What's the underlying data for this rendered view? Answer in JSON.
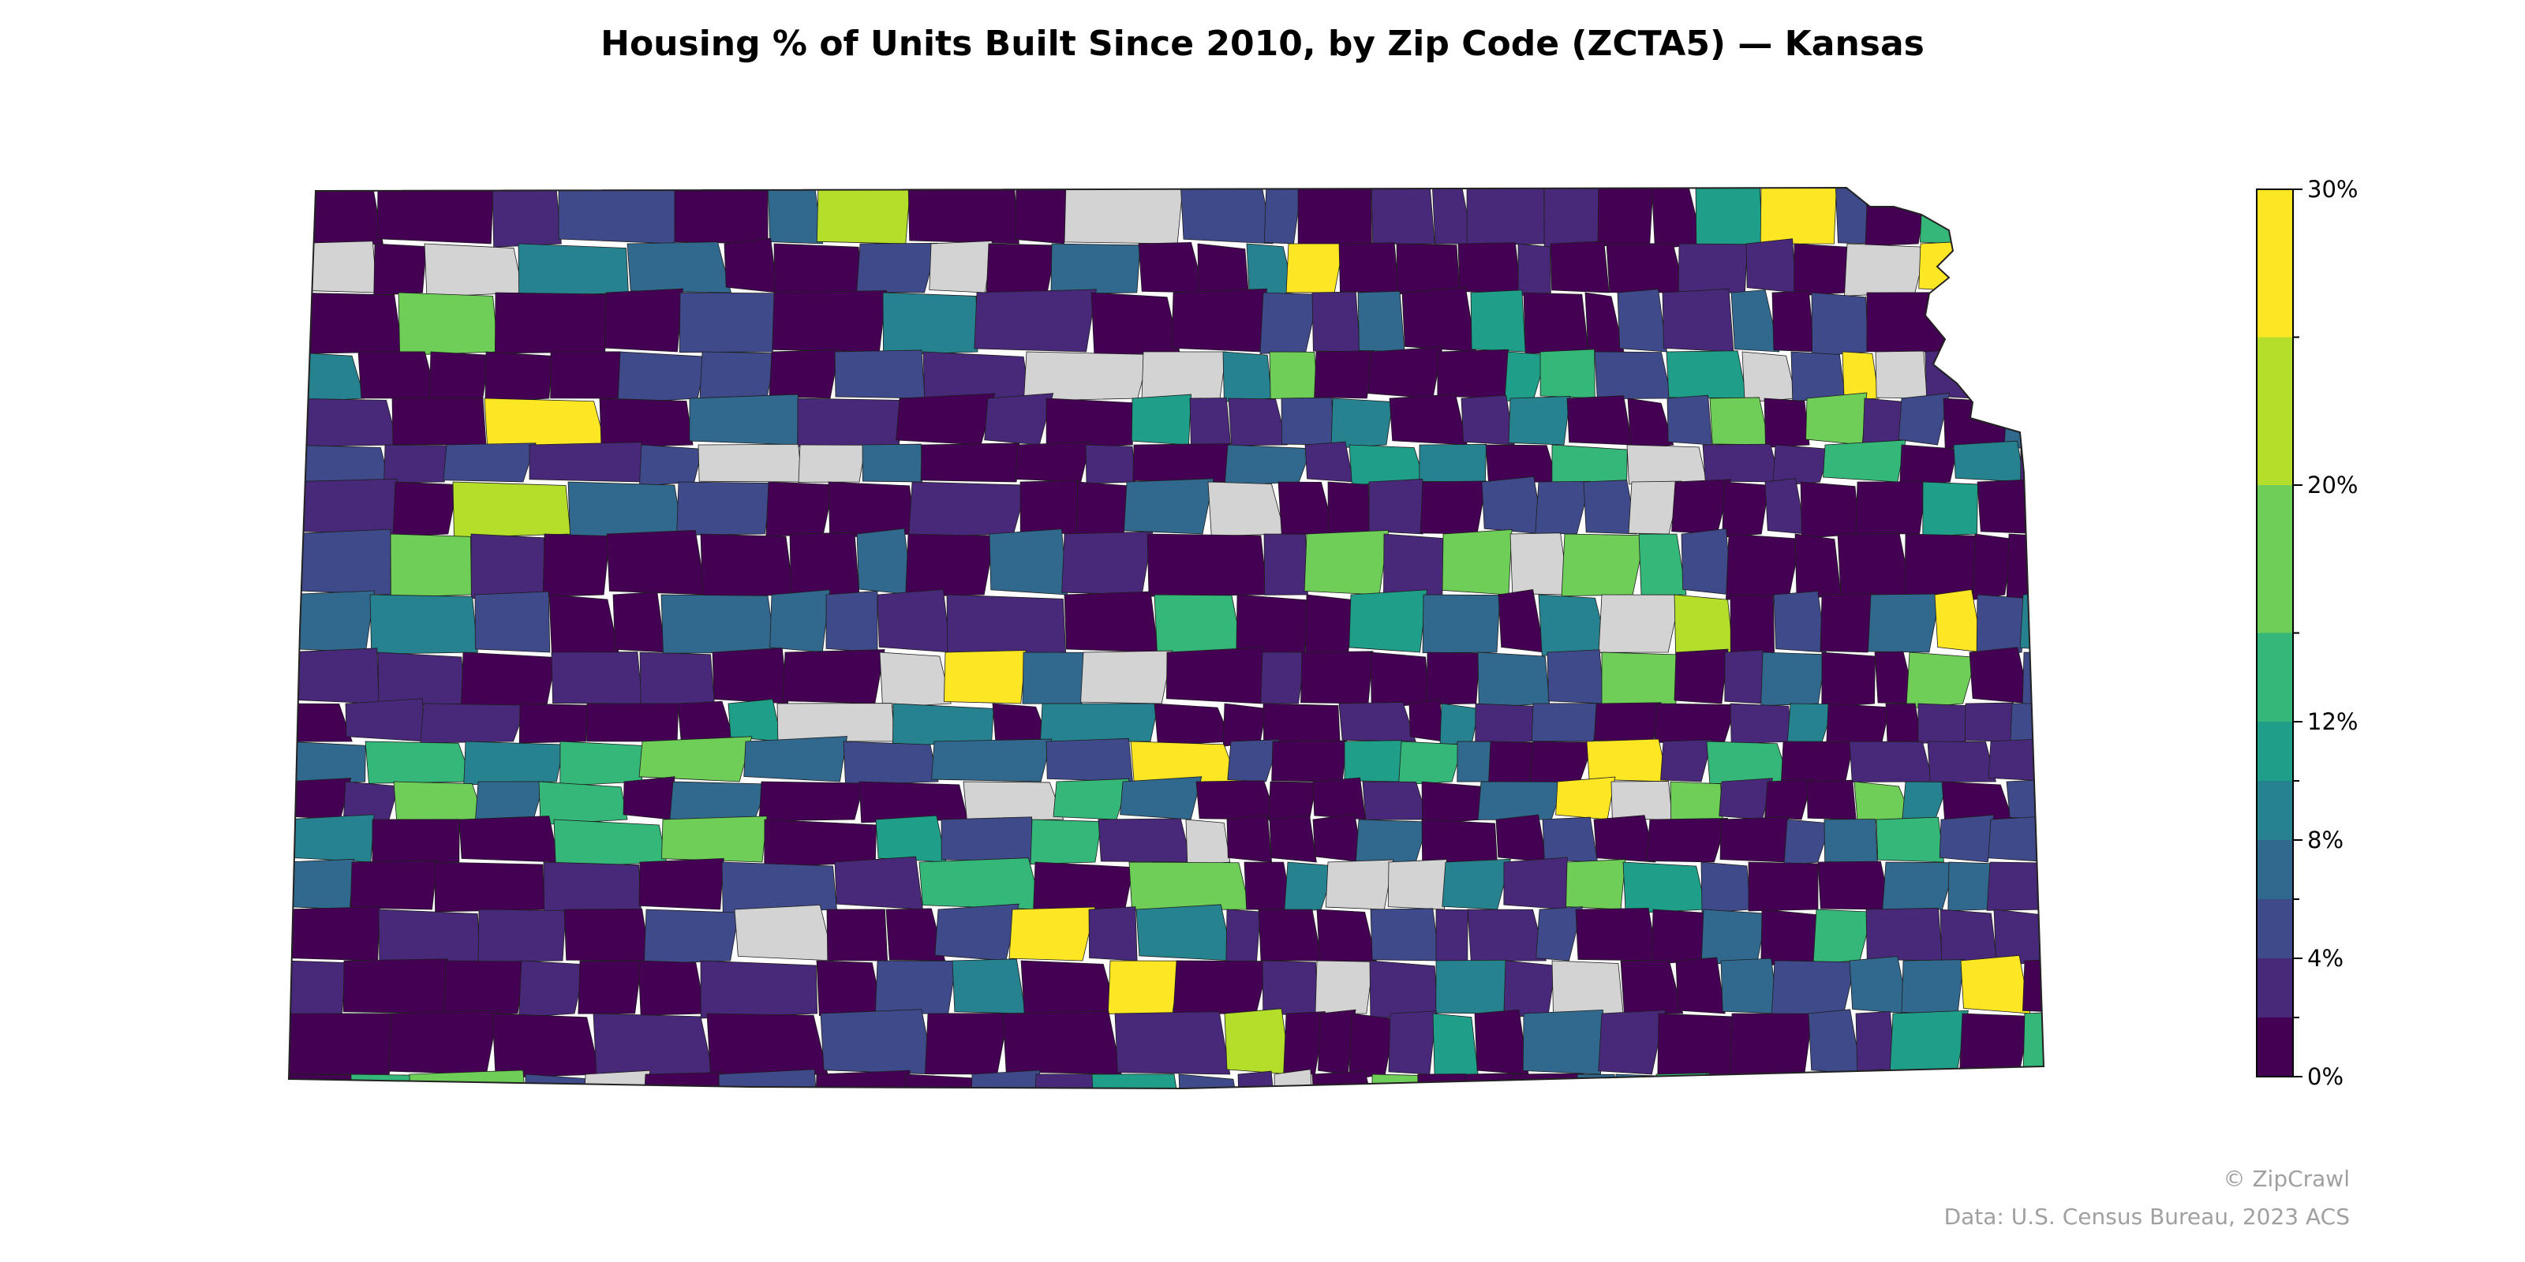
{
  "title": "Housing % of Units Built Since 2010, by Zip Code (ZCTA5) — Kansas",
  "credits": {
    "brand": "© ZipCrawl",
    "source": "Data: U.S. Census Bureau, 2023 ACS"
  },
  "map": {
    "region": "Kansas",
    "metric": "Housing % of Units Built Since 2010",
    "unit": "%",
    "geography": "Zip Code (ZCTA5)",
    "no_data_color": "#d3d3d3"
  },
  "colorbar": {
    "min": 0,
    "max": 30,
    "tick_values": [
      0,
      4,
      8,
      12,
      20,
      30
    ],
    "tick_labels": [
      "0%",
      "4%",
      "8%",
      "12%",
      "20%",
      "30%"
    ],
    "bins": [
      {
        "from": 0,
        "to": 2,
        "color": "#440154"
      },
      {
        "from": 2,
        "to": 4,
        "color": "#482878"
      },
      {
        "from": 4,
        "to": 6,
        "color": "#3e4a89"
      },
      {
        "from": 6,
        "to": 8,
        "color": "#31688e"
      },
      {
        "from": 8,
        "to": 10,
        "color": "#26828e"
      },
      {
        "from": 10,
        "to": 12,
        "color": "#1f9e89"
      },
      {
        "from": 12,
        "to": 15,
        "color": "#35b779"
      },
      {
        "from": 15,
        "to": 20,
        "color": "#6ece58"
      },
      {
        "from": 20,
        "to": 25,
        "color": "#b5de2b"
      },
      {
        "from": 25,
        "to": 30,
        "color": "#fde725"
      }
    ]
  }
}
